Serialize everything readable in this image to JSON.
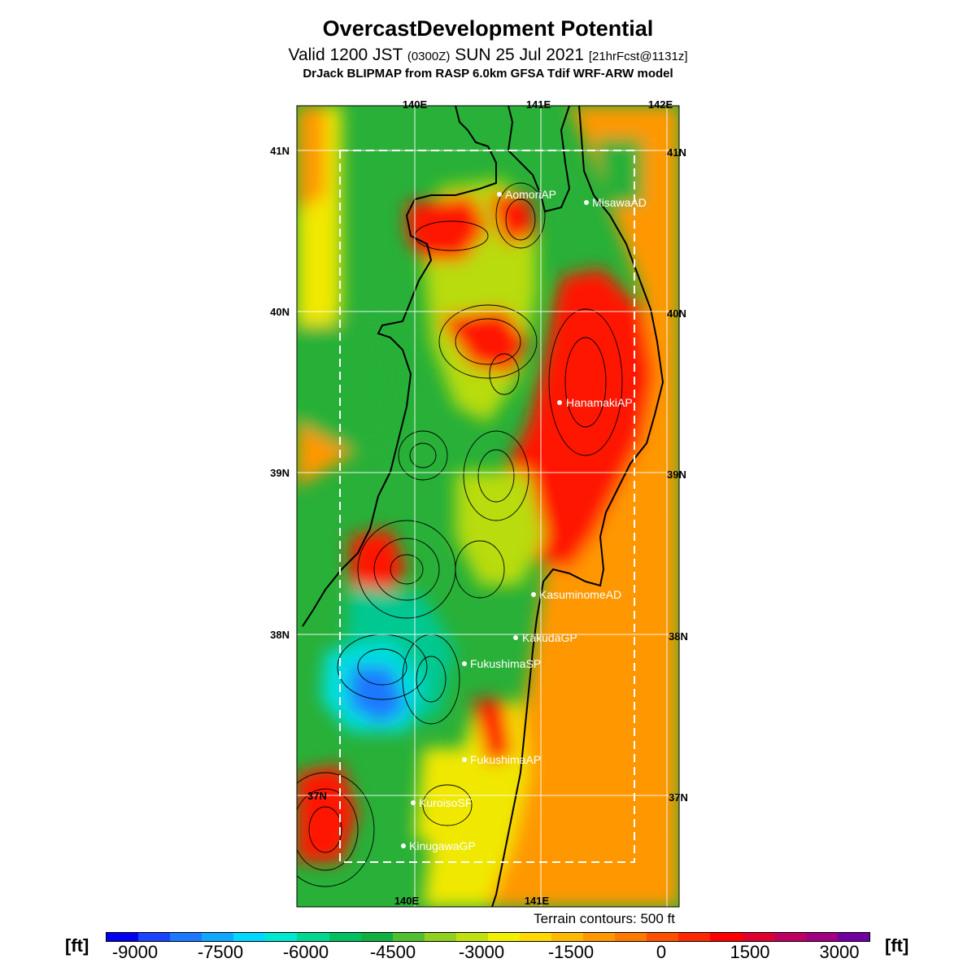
{
  "header": {
    "title": "OvercastDevelopment Potential",
    "valid_main": "Valid 1200 JST",
    "valid_utc": "(0300Z)",
    "valid_date": "SUN 25 Jul 2021",
    "fcst": "[21hrFcst@1131z]",
    "model": "DrJack BLIPMAP from RASP 6.0km GFSA Tdif WRF-ARW model"
  },
  "axes": {
    "lon_top": [
      "140E",
      "141E",
      "142E"
    ],
    "lon_bottom": [
      "140E",
      "141E"
    ],
    "lat_left": [
      "41N",
      "40N",
      "39N",
      "38N",
      "37N"
    ],
    "lat_right": [
      "41N",
      "40N",
      "39N",
      "38N",
      "37N"
    ]
  },
  "stations": [
    {
      "name": "AomoriAP"
    },
    {
      "name": "MisawaAD"
    },
    {
      "name": "HanamakiAP"
    },
    {
      "name": "KasuminomeAD"
    },
    {
      "name": "KakudaGP"
    },
    {
      "name": "FukushimaSP"
    },
    {
      "name": "FukushimaAP"
    },
    {
      "name": "KuroisoSF"
    },
    {
      "name": "KinugawaGP"
    }
  ],
  "terrain_note": "Terrain contours: 500 ft",
  "legend": {
    "unit": "[ft]",
    "ticks": [
      "-9000",
      "-7500",
      "-6000",
      "-4500",
      "-3000",
      "-1500",
      "0",
      "1500",
      "3000"
    ],
    "colors": [
      "#0000ee",
      "#1a44ff",
      "#1e78ff",
      "#10a8ff",
      "#00d8ff",
      "#00e8d0",
      "#00d890",
      "#00c060",
      "#10b040",
      "#50c030",
      "#90d020",
      "#c0e010",
      "#f0f000",
      "#ffd800",
      "#ffb800",
      "#ff9800",
      "#ff7800",
      "#ff5000",
      "#ff2800",
      "#ff0000",
      "#e00030",
      "#c00060",
      "#a00080",
      "#7000a0"
    ]
  },
  "field_colors": {
    "orange": "#ff9800",
    "red": "#ff1800",
    "yellow": "#f0e800",
    "lime": "#b8dc10",
    "green": "#28b038",
    "teal": "#00c890",
    "cyan": "#00e0e0",
    "blue": "#1e78ff"
  }
}
